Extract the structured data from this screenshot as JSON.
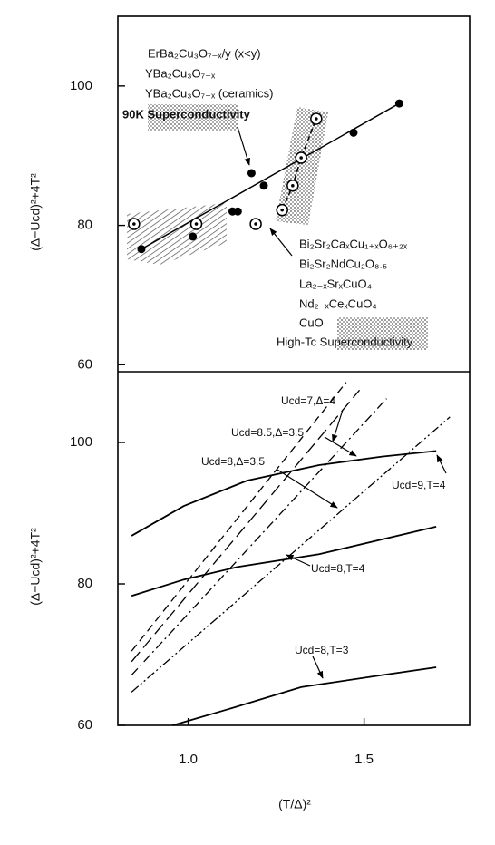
{
  "chart_data": [
    {
      "type": "scatter",
      "ylabel": "(Δ−Ucd)²+4T²",
      "xlim": [
        0.8,
        1.8
      ],
      "ylim": [
        59,
        110
      ],
      "yticks": [
        60,
        80,
        100
      ],
      "series": [
        {
          "marker": "filled",
          "line": "ends",
          "x": [
            0.867,
            1.013,
            1.126,
            1.141,
            1.18,
            1.215,
            1.47,
            1.6
          ],
          "values": [
            76.6,
            78.4,
            82.0,
            82.0,
            87.5,
            85.7,
            93.3,
            97.5
          ]
        },
        {
          "marker": "dotted",
          "line": "none",
          "x": [
            0.846,
            1.023,
            1.192
          ],
          "values": [
            80.2,
            80.2,
            80.2
          ]
        },
        {
          "marker": "dotted",
          "line": "through",
          "x": [
            1.267,
            1.297,
            1.321,
            1.364
          ],
          "values": [
            82.2,
            85.7,
            89.7,
            95.3
          ]
        }
      ],
      "labels_left": [
        "ErBa₂Cu₃O₇₋ₓ/y (x<y)",
        "YBa₂Cu₃O₇₋ₓ",
        "YBa₂Cu₃O₇₋ₓ (ceramics)",
        "90K Superconductivity"
      ],
      "labels_right": [
        "Bi₂Sr₂CaₓCu₁₊ₓO₆₊₂ₓ",
        "Bi₂Sr₂NdCu₂O₈.₅",
        "La₂₋ₓSrₓCuO₄",
        "Nd₂₋ₓCeₓCuO₄",
        "CuO",
        "High-Tc Superconductivity"
      ]
    },
    {
      "type": "line",
      "xlabel": "(T/Δ)²",
      "ylabel": "(Δ−Ucd)²+4T²",
      "xlim": [
        0.8,
        1.8
      ],
      "ylim": [
        60,
        110
      ],
      "xticks": [
        {
          "value": 1,
          "label": "1.0"
        },
        {
          "value": 1.5,
          "label": "1.5"
        }
      ],
      "yticks": [
        60,
        80,
        100
      ],
      "series": [
        {
          "name": "Ucd=8,T=3",
          "style": "solid",
          "x": [
            0.956,
            1.115,
            1.321,
            1.551,
            1.705
          ],
          "values": [
            60,
            62.3,
            65.4,
            67.1,
            68.2
          ]
        },
        {
          "name": "Ucd=8,T=4",
          "style": "solid",
          "x": [
            0.839,
            0.987,
            1.141,
            1.372,
            1.705
          ],
          "values": [
            78.3,
            80.6,
            82.4,
            84.2,
            88.1
          ]
        },
        {
          "name": "Ucd=9,T=4",
          "style": "solid",
          "x": [
            0.839,
            0.987,
            1.167,
            1.372,
            1.551,
            1.705
          ],
          "values": [
            86.8,
            91.0,
            94.6,
            96.8,
            98.0,
            98.8
          ]
        },
        {
          "name": "Ucd=7,Δ=4",
          "style": "dashed",
          "x": [
            0.839,
            1.449
          ],
          "values": [
            70.5,
            108.5
          ]
        },
        {
          "name": "Ucd=8.5,Δ=3.5",
          "style": "longdash",
          "x": [
            0.839,
            1.487
          ],
          "values": [
            69.0,
            107.4
          ]
        },
        {
          "name": "Ucd=8,Δ=3.5",
          "style": "dashdot",
          "x": [
            0.839,
            1.564
          ],
          "values": [
            67.1,
            106.2
          ]
        },
        {
          "style": "dashdotdot",
          "x": [
            0.839,
            1.744
          ],
          "values": [
            64.7,
            103.6
          ]
        }
      ]
    }
  ]
}
